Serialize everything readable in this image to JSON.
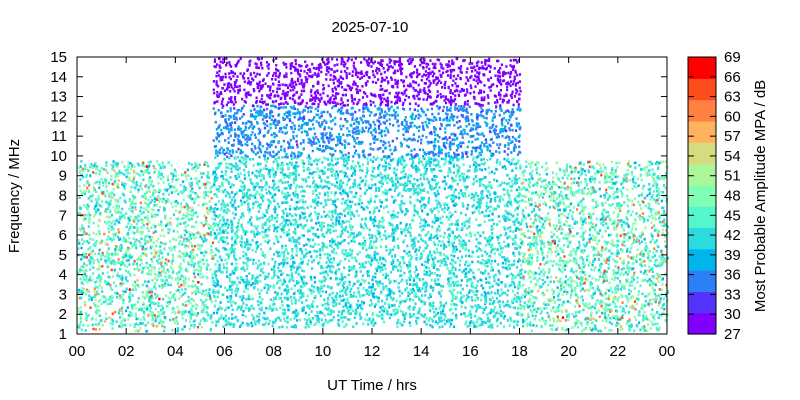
{
  "chart_data": {
    "type": "heatmap",
    "title": "2025-07-10",
    "xlabel": "UT Time / hrs",
    "ylabel": "Frequency / MHz",
    "xlim": [
      0,
      24
    ],
    "ylim": [
      1,
      15
    ],
    "x_ticks": [
      "00",
      "02",
      "04",
      "06",
      "08",
      "10",
      "12",
      "14",
      "16",
      "18",
      "20",
      "22",
      "00"
    ],
    "y_ticks": [
      "1",
      "2",
      "3",
      "4",
      "5",
      "6",
      "7",
      "8",
      "9",
      "10",
      "11",
      "12",
      "13",
      "14",
      "15"
    ],
    "colorbar": {
      "label": "Most Probable Amplitude MPA / dB",
      "range": [
        27,
        69
      ],
      "ticks": [
        "27",
        "30",
        "33",
        "36",
        "39",
        "42",
        "45",
        "48",
        "51",
        "54",
        "57",
        "60",
        "63",
        "66",
        "69"
      ],
      "colors": [
        "#7f00ff",
        "#5533fc",
        "#2b80f6",
        "#00b5eb",
        "#2adcdd",
        "#54f6cb",
        "#80feb3",
        "#aaf698",
        "#d4dc7f",
        "#ffb360",
        "#ff8040",
        "#ff4c1c",
        "#ff0000"
      ]
    },
    "regions": [
      {
        "x": [
          0,
          5.5
        ],
        "y": [
          1.2,
          9.8
        ],
        "typical_mpa": [
          39,
          51
        ],
        "peak_mpa": 66
      },
      {
        "x": [
          5.5,
          18
        ],
        "y": [
          1.4,
          10.0
        ],
        "typical_mpa": [
          39,
          45
        ]
      },
      {
        "x": [
          5.5,
          18
        ],
        "y": [
          10.0,
          12.6
        ],
        "typical_mpa": [
          33,
          39
        ]
      },
      {
        "x": [
          5.5,
          18
        ],
        "y": [
          12.6,
          15.0
        ],
        "typical_mpa": [
          27,
          30
        ]
      },
      {
        "x": [
          18,
          24
        ],
        "y": [
          1.2,
          9.8
        ],
        "typical_mpa": [
          39,
          51
        ],
        "peak_mpa": 66
      }
    ]
  }
}
